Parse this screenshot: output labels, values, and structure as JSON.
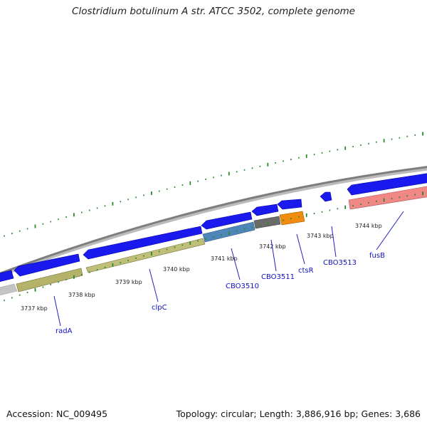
{
  "title": "Clostridium botulinum A str. ATCC 3502, complete genome",
  "footer": {
    "accession": "Accession: NC_009495",
    "stats": "Topology: circular; Length: 3,886,916 bp; Genes: 3,686"
  },
  "colors": {
    "backbone": "#888888",
    "gene_arrow": "#1a1aee",
    "tick": "#2a8a2a",
    "label_text": "#1010c0",
    "categories": {
      "radA": "#b5b36a",
      "clpC": "#c0bf7a",
      "CBO3510": "#4f86b8",
      "CBO3511": "#6b6b6b",
      "ctsR": "#f08c10",
      "fusB": "#f08888",
      "left_gray": "#c4c4c4"
    }
  },
  "kbp_labels": [
    "3737 kbp",
    "3738 kbp",
    "3739 kbp",
    "3740 kbp",
    "3741 kbp",
    "3742 kbp",
    "3743 kbp",
    "3744 kbp"
  ],
  "gene_labels": [
    "radA",
    "clpC",
    "CBO3510",
    "CBO3511",
    "ctsR",
    "CBO3513",
    "fusB"
  ]
}
